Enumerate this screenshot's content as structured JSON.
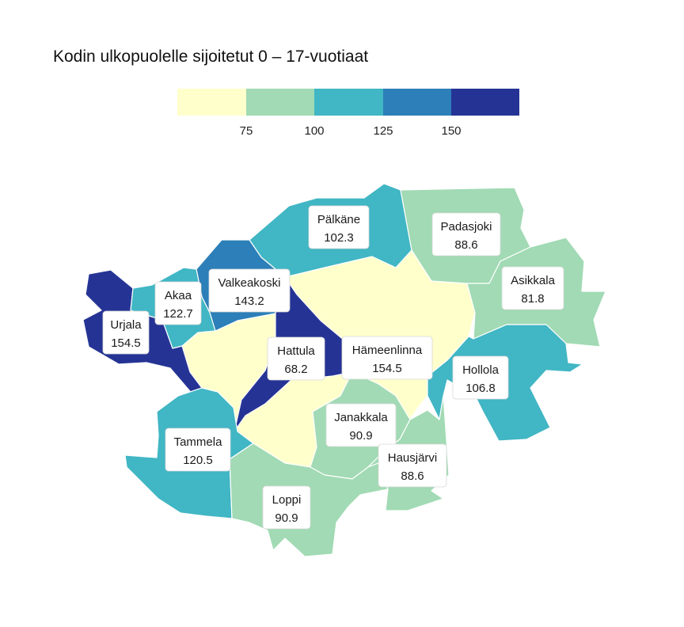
{
  "chart_data": {
    "type": "choropleth",
    "title": "Kodin ulkopuolelle sijoitetut 0 – 17-vuotiaat",
    "legend": {
      "type": "binned-color-scale",
      "position": "top-center",
      "breaks": [
        75,
        100,
        125,
        150
      ],
      "tick_labels": [
        "75",
        "100",
        "125",
        "150"
      ],
      "colors": [
        "#ffffcc",
        "#a1dab4",
        "#41b6c4",
        "#2c7fb8",
        "#253494"
      ]
    },
    "regions": [
      {
        "name": "Pälkäne",
        "value": 102.3,
        "value_label": "102.3",
        "color": "#41b6c4"
      },
      {
        "name": "Padasjoki",
        "value": 88.6,
        "value_label": "88.6",
        "color": "#a1dab4"
      },
      {
        "name": "Valkeakoski",
        "value": 143.2,
        "value_label": "143.2",
        "color": "#2c7fb8"
      },
      {
        "name": "Akaa",
        "value": 122.7,
        "value_label": "122.7",
        "color": "#41b6c4"
      },
      {
        "name": "Asikkala",
        "value": 81.8,
        "value_label": "81.8",
        "color": "#a1dab4"
      },
      {
        "name": "Urjala",
        "value": 154.5,
        "value_label": "154.5",
        "color": "#253494"
      },
      {
        "name": "Hattula",
        "value": 68.2,
        "value_label": "68.2",
        "color": "#ffffcc"
      },
      {
        "name": "Hämeenlinna",
        "value": 154.5,
        "value_label": "154.5",
        "color": "#253494"
      },
      {
        "name": "Hollola",
        "value": 106.8,
        "value_label": "106.8",
        "color": "#41b6c4"
      },
      {
        "name": "Janakkala",
        "value": 90.9,
        "value_label": "90.9",
        "color": "#a1dab4"
      },
      {
        "name": "Tammela",
        "value": 120.5,
        "value_label": "120.5",
        "color": "#41b6c4"
      },
      {
        "name": "Hausjärvi",
        "value": 88.6,
        "value_label": "88.6",
        "color": "#a1dab4"
      },
      {
        "name": "Loppi",
        "value": 90.9,
        "value_label": "90.9",
        "color": "#a1dab4"
      }
    ]
  }
}
